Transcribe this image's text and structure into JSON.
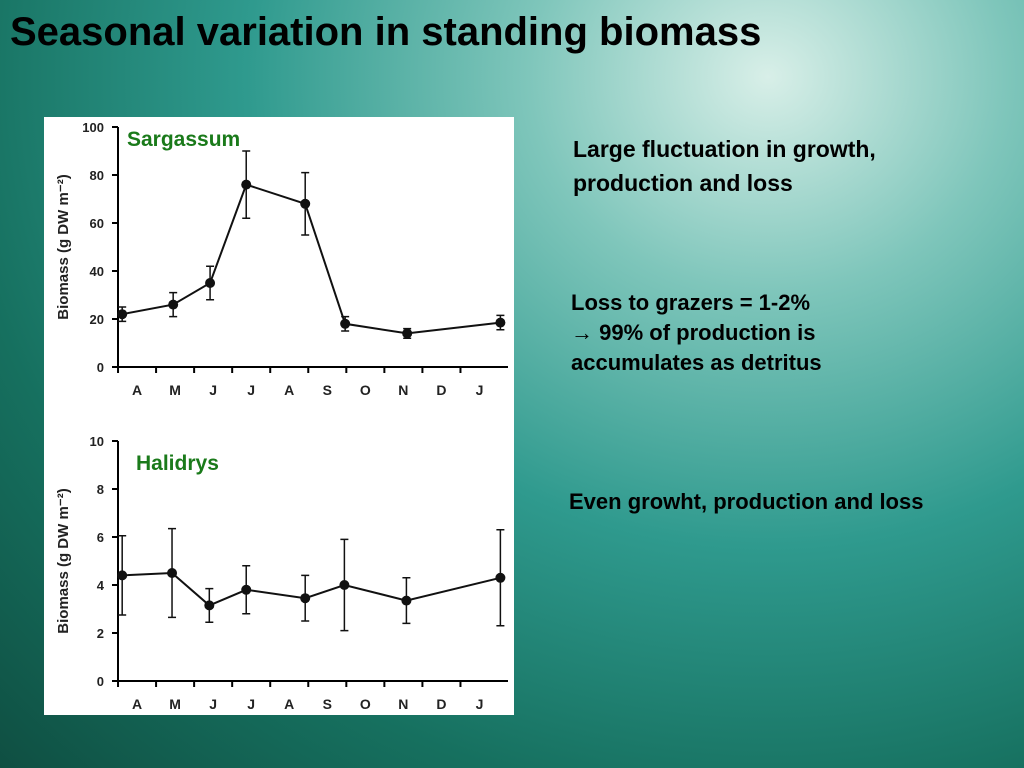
{
  "slide": {
    "title": "Seasonal variation in standing biomass",
    "note1": "Large fluctuation in growth, production and loss",
    "note2": [
      "Loss to grazers = 1-2%",
      "→ 99% of production is",
      "accumulates as detritus"
    ],
    "note3": "Even growht, production and loss"
  },
  "chart_data": [
    {
      "type": "line",
      "title": "Sargassum",
      "y_label": "Biomass (g DW m⁻²)",
      "x": [
        -0.39,
        0.95,
        1.92,
        2.87,
        4.42,
        5.47,
        7.1,
        9.55
      ],
      "xlim": [
        -0.5,
        9.75
      ],
      "xticks": [
        {
          "value": 0,
          "label": "A"
        },
        {
          "value": 1,
          "label": "M"
        },
        {
          "value": 2,
          "label": "J"
        },
        {
          "value": 3,
          "label": "J"
        },
        {
          "value": 4,
          "label": "A"
        },
        {
          "value": 5,
          "label": "S"
        },
        {
          "value": 6,
          "label": "O"
        },
        {
          "value": 7,
          "label": "N"
        },
        {
          "value": 8,
          "label": "D"
        },
        {
          "value": 9,
          "label": "J"
        }
      ],
      "ylim": [
        0,
        100
      ],
      "yticks": [
        0,
        20,
        40,
        60,
        80,
        100
      ],
      "series": [
        {
          "color": "#111111",
          "values": [
            22,
            26,
            35,
            76,
            68,
            18,
            14,
            18.5
          ],
          "errors": [
            3,
            5,
            7,
            14,
            13,
            3,
            2,
            3
          ]
        }
      ]
    },
    {
      "type": "line",
      "title": "Halidrys",
      "y_label": "Biomass (g DW m⁻²)",
      "x": [
        -0.39,
        0.92,
        1.9,
        2.87,
        4.42,
        5.45,
        7.08,
        9.55
      ],
      "xlim": [
        -0.5,
        9.75
      ],
      "xticks": [
        {
          "value": 0,
          "label": "A"
        },
        {
          "value": 1,
          "label": "M"
        },
        {
          "value": 2,
          "label": "J"
        },
        {
          "value": 3,
          "label": "J"
        },
        {
          "value": 4,
          "label": "A"
        },
        {
          "value": 5,
          "label": "S"
        },
        {
          "value": 6,
          "label": "O"
        },
        {
          "value": 7,
          "label": "N"
        },
        {
          "value": 8,
          "label": "D"
        },
        {
          "value": 9,
          "label": "J"
        }
      ],
      "ylim": [
        0,
        10
      ],
      "yticks": [
        0,
        2,
        4,
        6,
        8,
        10
      ],
      "series": [
        {
          "color": "#111111",
          "values": [
            4.4,
            4.5,
            3.15,
            3.8,
            3.45,
            4.0,
            3.35,
            4.3
          ],
          "errors": [
            1.65,
            1.85,
            0.7,
            1,
            0.95,
            1.9,
            0.95,
            2
          ]
        }
      ]
    }
  ]
}
